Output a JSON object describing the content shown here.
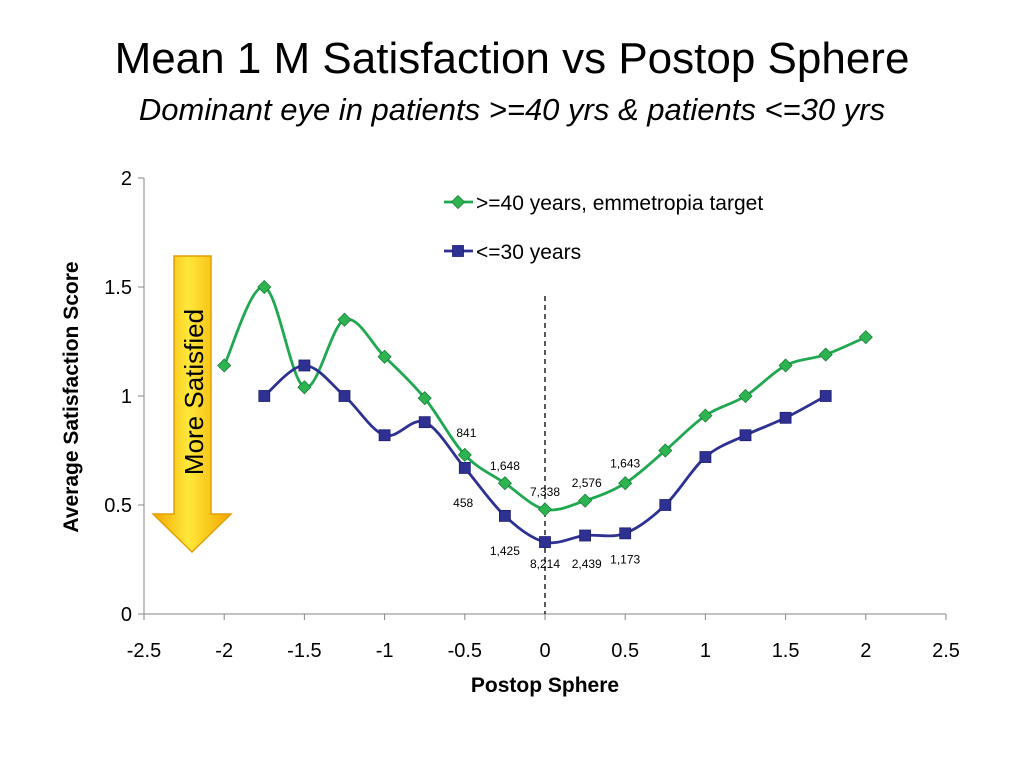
{
  "slide": {
    "title": "Mean 1 M Satisfaction vs Postop Sphere",
    "subtitle": "Dominant eye in patients >=40 yrs & patients <=30 yrs"
  },
  "chart_data": {
    "type": "line",
    "title": "",
    "xlabel": "Postop Sphere",
    "ylabel": "Average Satisfaction Score",
    "xlim": [
      -2.5,
      2.5
    ],
    "ylim": [
      0,
      2
    ],
    "xticks": [
      "-2.5",
      "-2",
      "-1.5",
      "-1",
      "-0.5",
      "0",
      "0.5",
      "1",
      "1.5",
      "2",
      "2.5"
    ],
    "yticks": [
      "0",
      "0.5",
      "1",
      "1.5",
      "2"
    ],
    "grid": false,
    "legend_position": "top-right",
    "reference_line": {
      "x": 0,
      "style": "dashed"
    },
    "series": [
      {
        "name": ">=40 years, emmetropia target",
        "color": "#1fa84f",
        "marker_color": "#2db34f",
        "marker": "diamond",
        "smooth": true,
        "x": [
          -2,
          -1.75,
          -1.5,
          -1.25,
          -1,
          -0.75,
          -0.5,
          -0.25,
          0,
          0.25,
          0.5,
          0.75,
          1,
          1.25,
          1.5,
          1.75,
          2
        ],
        "y": [
          1.14,
          1.5,
          1.04,
          1.35,
          1.18,
          0.99,
          0.73,
          0.6,
          0.48,
          0.52,
          0.6,
          0.75,
          0.91,
          1.0,
          1.14,
          1.19,
          1.27
        ]
      },
      {
        "name": "<=30 years",
        "color": "#2e3192",
        "marker_color": "#2e3192",
        "marker": "square",
        "smooth": true,
        "x": [
          -1.75,
          -1.5,
          -1.25,
          -1,
          -0.75,
          -0.5,
          -0.25,
          0,
          0.25,
          0.5,
          0.75,
          1,
          1.25,
          1.5,
          1.75
        ],
        "y": [
          1.0,
          1.14,
          1.0,
          0.82,
          0.88,
          0.67,
          0.45,
          0.33,
          0.36,
          0.37,
          0.5,
          0.72,
          0.82,
          0.9,
          1.0
        ]
      }
    ],
    "annotations": [
      {
        "text": "841",
        "x": -0.49,
        "y": 0.83
      },
      {
        "text": "1,648",
        "x": -0.25,
        "y": 0.68
      },
      {
        "text": "7,338",
        "x": 0.0,
        "y": 0.56
      },
      {
        "text": "2,576",
        "x": 0.26,
        "y": 0.6
      },
      {
        "text": "1,643",
        "x": 0.5,
        "y": 0.69
      },
      {
        "text": "458",
        "x": -0.51,
        "y": 0.51
      },
      {
        "text": "1,425",
        "x": -0.25,
        "y": 0.29
      },
      {
        "text": "8,214",
        "x": 0.0,
        "y": 0.23
      },
      {
        "text": "2,439",
        "x": 0.26,
        "y": 0.23
      },
      {
        "text": "1,173",
        "x": 0.5,
        "y": 0.25
      }
    ],
    "arrow_label": "More  Satisfied",
    "arrow_color": "#f7b500"
  }
}
